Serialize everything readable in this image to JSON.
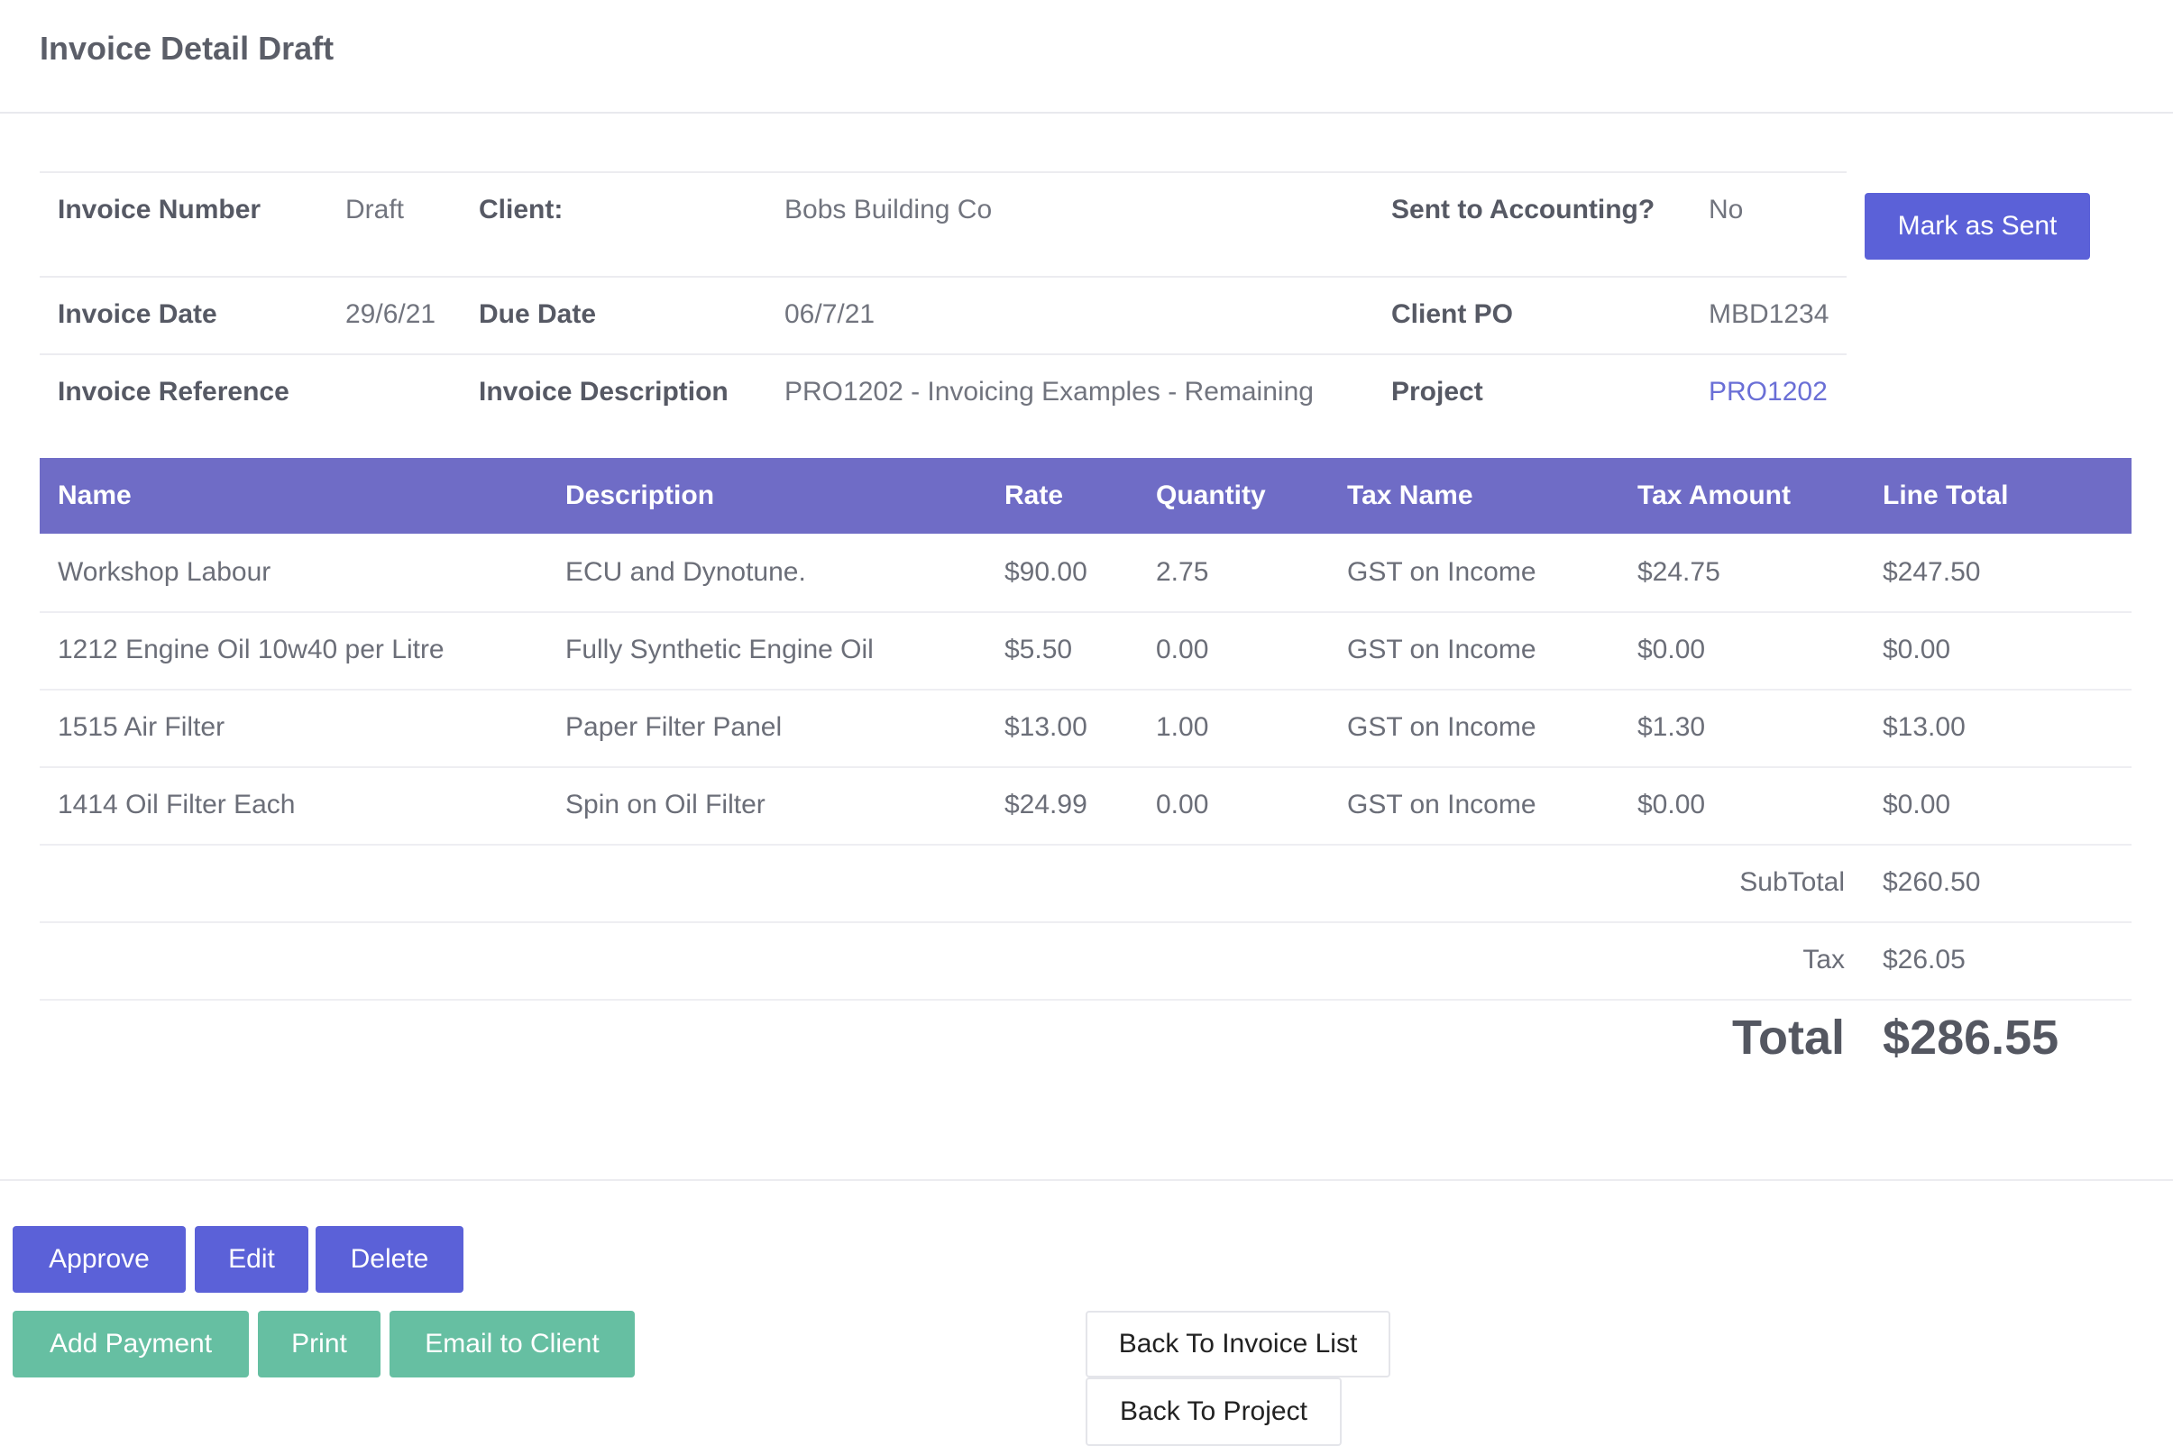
{
  "page": {
    "title": "Invoice Detail Draft"
  },
  "details": {
    "invoice_number_label": "Invoice Number",
    "invoice_number": "Draft",
    "client_label": "Client:",
    "client": "Bobs Building Co",
    "sent_label": "Sent to Accounting?",
    "sent": "No",
    "mark_sent_button": "Mark as Sent",
    "invoice_date_label": "Invoice Date",
    "invoice_date": "29/6/21",
    "due_date_label": "Due Date",
    "due_date": "06/7/21",
    "client_po_label": "Client PO",
    "client_po": "MBD1234",
    "invoice_reference_label": "Invoice Reference",
    "invoice_reference": "",
    "invoice_description_label": "Invoice Description",
    "invoice_description": "PRO1202 - Invoicing Examples - Remaining",
    "project_label": "Project",
    "project": "PRO1202"
  },
  "items": {
    "columns": [
      "Name",
      "Description",
      "Rate",
      "Quantity",
      "Tax Name",
      "Tax Amount",
      "Line Total"
    ],
    "rows": [
      [
        "Workshop Labour",
        "ECU and Dynotune.",
        "$90.00",
        "2.75",
        "GST on Income",
        "$24.75",
        "$247.50"
      ],
      [
        "1212 Engine Oil 10w40 per Litre",
        "Fully Synthetic Engine Oil",
        "$5.50",
        "0.00",
        "GST on Income",
        "$0.00",
        "$0.00"
      ],
      [
        "1515 Air Filter",
        "Paper Filter Panel",
        "$13.00",
        "1.00",
        "GST on Income",
        "$1.30",
        "$13.00"
      ],
      [
        "1414 Oil Filter Each",
        "Spin on Oil Filter",
        "$24.99",
        "0.00",
        "GST on Income",
        "$0.00",
        "$0.00"
      ]
    ],
    "subtotal_label": "SubTotal",
    "subtotal": "$260.50",
    "tax_label": "Tax",
    "tax": "$26.05",
    "total_label": "Total",
    "total": "$286.55"
  },
  "actions": {
    "approve": "Approve",
    "edit": "Edit",
    "delete": "Delete",
    "add_payment": "Add Payment",
    "print": "Print",
    "email_client": "Email to Client",
    "back_invoice_list": "Back To Invoice List",
    "back_project": "Back To Project"
  },
  "colors": {
    "primary": "#5b61d8",
    "table_header": "#6f6cc6",
    "success": "#66bfa2",
    "link": "#6a6fd6"
  }
}
